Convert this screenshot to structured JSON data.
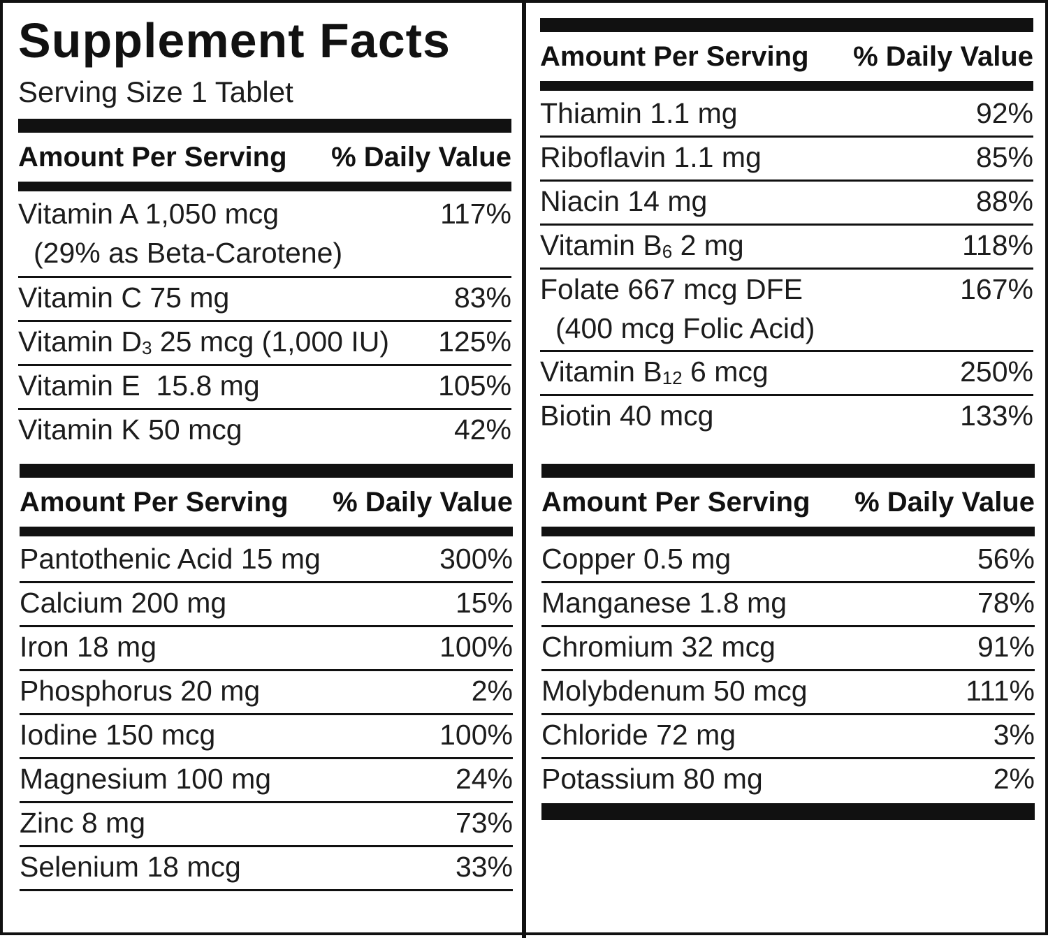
{
  "title": "Supplement Facts",
  "serving_size": "Serving Size 1 Tablet",
  "header": {
    "amount": "Amount Per Serving",
    "dv": "% Daily Value"
  },
  "left_top": [
    {
      "name": "Vitamin A 1,050 mcg",
      "sub": "(29% as Beta-Carotene)",
      "dv": "117%"
    },
    {
      "name": "Vitamin C 75 mg",
      "dv": "83%"
    },
    {
      "name_pre": "Vitamin D",
      "name_sub": "3",
      "name_post": " 25 mcg (1,000 IU)",
      "dv": "125%"
    },
    {
      "name": "Vitamin E  15.8 mg",
      "dv": "105%"
    },
    {
      "name": "Vitamin K 50 mcg",
      "dv": "42%"
    }
  ],
  "left_bottom": [
    {
      "name": "Pantothenic Acid 15 mg",
      "dv": "300%"
    },
    {
      "name": "Calcium 200 mg",
      "dv": "15%"
    },
    {
      "name": "Iron 18 mg",
      "dv": "100%"
    },
    {
      "name": "Phosphorus 20 mg",
      "dv": "2%"
    },
    {
      "name": "Iodine 150 mcg",
      "dv": "100%"
    },
    {
      "name": "Magnesium 100 mg",
      "dv": "24%"
    },
    {
      "name": "Zinc 8 mg",
      "dv": "73%"
    },
    {
      "name": "Selenium 18 mcg",
      "dv": "33%"
    }
  ],
  "right_top": [
    {
      "name": "Thiamin 1.1 mg",
      "dv": "92%"
    },
    {
      "name": "Riboflavin 1.1 mg",
      "dv": "85%"
    },
    {
      "name": "Niacin 14 mg",
      "dv": "88%"
    },
    {
      "name_pre": "Vitamin B",
      "name_sub": "6",
      "name_post": " 2 mg",
      "dv": "118%"
    },
    {
      "name": "Folate 667 mcg DFE",
      "sub": "(400 mcg Folic Acid)",
      "dv": "167%"
    },
    {
      "name_pre": "Vitamin B",
      "name_sub": "12",
      "name_post": " 6 mcg",
      "dv": "250%"
    },
    {
      "name": "Biotin 40 mcg",
      "dv": "133%"
    }
  ],
  "right_bottom": [
    {
      "name": "Copper 0.5 mg",
      "dv": "56%"
    },
    {
      "name": "Manganese 1.8 mg",
      "dv": "78%"
    },
    {
      "name": "Chromium 32 mcg",
      "dv": "91%"
    },
    {
      "name": "Molybdenum 50 mcg",
      "dv": "111%"
    },
    {
      "name": "Chloride 72 mg",
      "dv": "3%"
    },
    {
      "name": "Potassium 80 mg",
      "dv": "2%"
    }
  ]
}
